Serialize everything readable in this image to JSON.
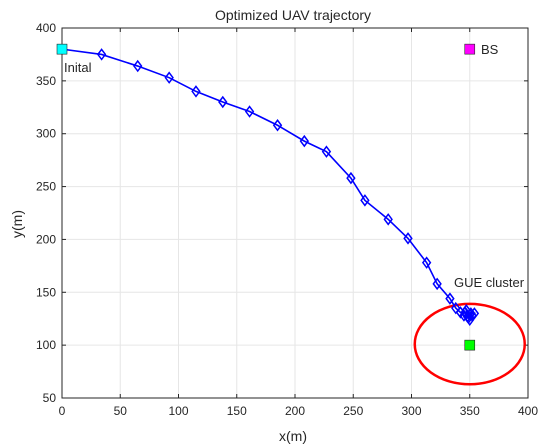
{
  "chart_data": {
    "type": "scatter",
    "title": "Optimized UAV trajectory",
    "xlabel": "x(m)",
    "ylabel": "y(m)",
    "xlim": [
      0,
      400
    ],
    "ylim": [
      50,
      400
    ],
    "xticks": [
      0,
      50,
      100,
      150,
      200,
      250,
      300,
      350,
      400
    ],
    "yticks": [
      50,
      100,
      150,
      200,
      250,
      300,
      350,
      400
    ],
    "grid": true,
    "colors": {
      "trajectory": "#0000ff",
      "initial": "#00ffff",
      "bs": "#ff00ff",
      "gue": "#00ff00",
      "circle": "#ff0000",
      "grid": "#e6e6e6",
      "axes": "#262626"
    },
    "trajectory": {
      "x": [
        0,
        34,
        65,
        92,
        115,
        138,
        161,
        185,
        208,
        227,
        248,
        260,
        280,
        297,
        313,
        322,
        333,
        338,
        342,
        345,
        348,
        350,
        351,
        349,
        347,
        352,
        354,
        346,
        350
      ],
      "y": [
        380,
        375,
        364,
        353,
        340,
        330,
        321,
        308,
        293,
        283,
        258,
        237,
        219,
        201,
        178,
        158,
        144,
        135,
        131,
        128,
        127,
        129,
        130,
        126,
        133,
        128,
        130,
        131,
        124
      ]
    },
    "initial_point": {
      "x": 0,
      "y": 380
    },
    "bs_point": {
      "x": 350,
      "y": 380
    },
    "gue_point": {
      "x": 350,
      "y": 100
    },
    "gue_circle": {
      "cx": 350,
      "cy": 101,
      "r": 40
    },
    "annotations": {
      "initial": "Inital",
      "bs": "BS",
      "gue": "GUE cluster"
    }
  }
}
